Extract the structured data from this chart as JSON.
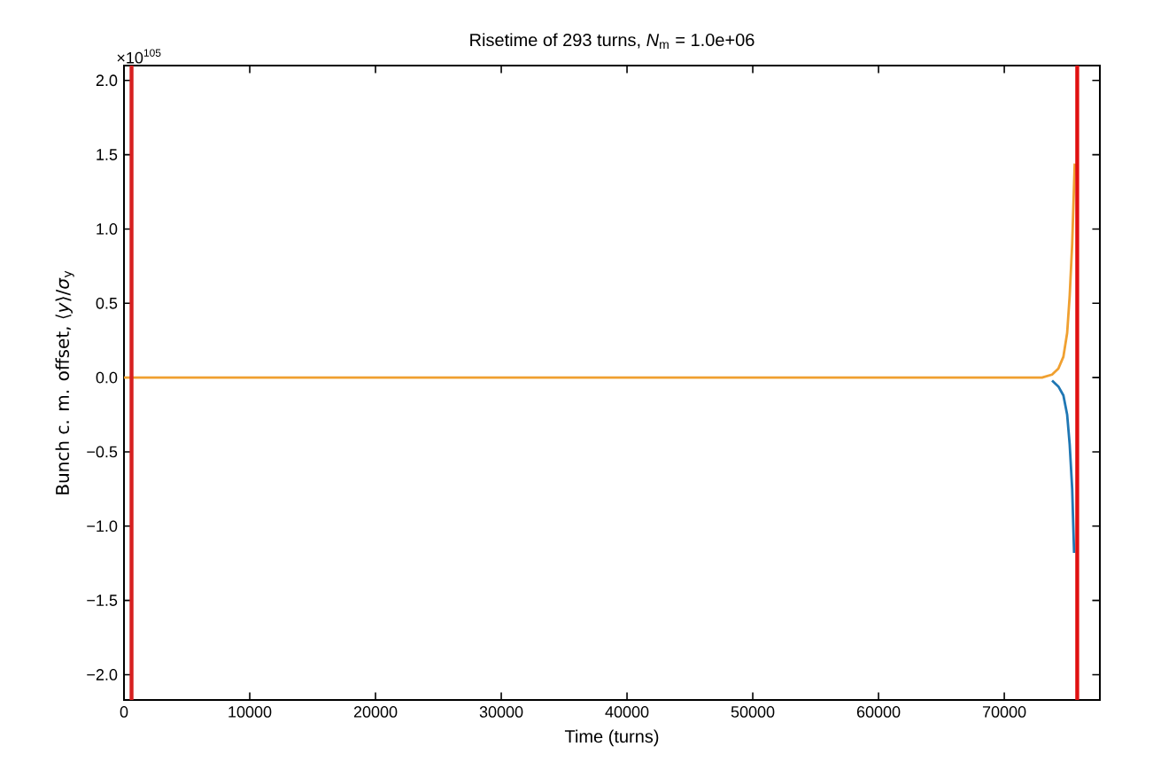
{
  "chart_data": {
    "type": "line",
    "title": "Risetime of 293 turns, *N*$_{m}$ = 1.0e+06",
    "xlabel": "Time (turns)",
    "ylabel": "Bunch c. m. offset, ⟨*y*⟩/*σ*$_{y}$",
    "annotations": [
      "×10$^{105}$"
    ],
    "series": [
      {
        "color": "#1f77b4",
        "x": [
          73800,
          74300,
          74700,
          75000,
          75200,
          75400,
          75550
        ],
        "values": [
          -0.02,
          -0.06,
          -0.12,
          -0.25,
          -0.45,
          -0.75,
          -1.18
        ]
      },
      {
        "color": "#f0a030",
        "x": [
          0,
          20000,
          40000,
          60000,
          70000,
          73000,
          73800,
          74300,
          74700,
          75000,
          75200,
          75400,
          75600
        ],
        "values": [
          0,
          0,
          0,
          0,
          0,
          0,
          0.02,
          0.06,
          0.14,
          0.3,
          0.55,
          0.9,
          1.44
        ]
      }
    ],
    "ref_lines": [
      {
        "axis": "x",
        "value": 600,
        "color": "#d62020"
      },
      {
        "axis": "x",
        "value": 75800,
        "color": "#e01010"
      }
    ],
    "xlim": [
      0,
      77600
    ],
    "ylim": [
      -2.17,
      2.1
    ],
    "xticks": [
      0,
      10000,
      20000,
      30000,
      40000,
      50000,
      60000,
      70000
    ],
    "yticks": [
      {
        "value": -2.0,
        "label": "−2.0"
      },
      {
        "value": -1.5,
        "label": "−1.5"
      },
      {
        "value": -1.0,
        "label": "−1.0"
      },
      {
        "value": -0.5,
        "label": "−0.5"
      },
      {
        "value": 0.0,
        "label": "0.0"
      },
      {
        "value": 0.5,
        "label": "0.5"
      },
      {
        "value": 1.0,
        "label": "1.0"
      },
      {
        "value": 1.5,
        "label": "1.5"
      },
      {
        "value": 2.0,
        "label": "2.0"
      }
    ],
    "grid": false,
    "marker": "none",
    "line_style": "solid"
  }
}
